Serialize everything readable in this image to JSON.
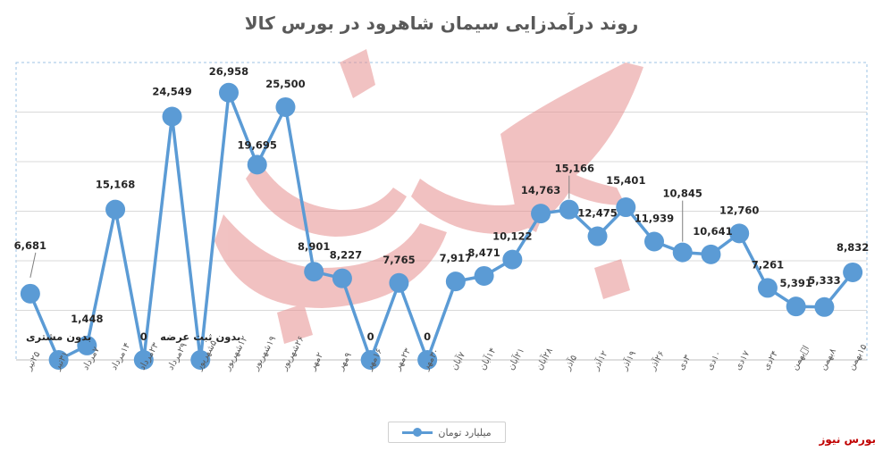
{
  "chart_data": {
    "type": "line",
    "title": "روند درآمدزایی سیمان شاهرود در بورس کالا",
    "x": [
      "۲۵تیر",
      "۳۱تیر",
      "۷مرداد",
      "۱۴مرداد",
      "۲۳مرداد",
      "۲۹مرداد",
      "۵شهریور",
      "۱۲شهریور",
      "۱۹شهریور",
      "۲۶شهریور",
      "۲مهر",
      "۹مهر",
      "۱۶مهر",
      "۲۳مهر",
      "۳۰مهر",
      "۷آبان",
      "۱۴آبان",
      "۲۱آبان",
      "۲۸آبان",
      "۵آذر",
      "۱۲آذر",
      "۱۹آذر",
      "۲۶آذر",
      "۳دی",
      "۱۰دی",
      "۱۷دی",
      "۲۴دی",
      "اۡبهمن",
      "۸بهمن",
      "۱۵بهمن"
    ],
    "series": [
      {
        "name": "میلیارد تومان",
        "values": [
          6681,
          0,
          1448,
          15168,
          0,
          24549,
          0,
          26958,
          19695,
          25500,
          8901,
          8227,
          0,
          7765,
          0,
          7917,
          8471,
          10122,
          14763,
          15166,
          12475,
          15401,
          11939,
          10845,
          10641,
          12760,
          7261,
          5391,
          5333,
          8832
        ],
        "labels": [
          "6,681",
          "",
          "1,448",
          "15,168",
          "0",
          "24,549",
          "",
          "26,958",
          "19,695",
          "25,500",
          "8,901",
          "8,227",
          "0",
          "7,765",
          "0",
          "7,917",
          "8,471",
          "10,122",
          "14,763",
          "15,166",
          "12,475",
          "15,401",
          "11,939",
          "10,845",
          "10,641",
          "12,760",
          "7,261",
          "5,391",
          "5,333",
          "8,832"
        ]
      }
    ],
    "annotations": [
      {
        "index": 1,
        "text": "بدون مشتری"
      },
      {
        "index": 6,
        "text": "بدون ثبت عرضه"
      }
    ],
    "ylim": [
      0,
      30000
    ],
    "grid": true,
    "legend": "bottom"
  },
  "legend_label": "میلیارد تومان",
  "brand": "بورس نیوز",
  "colors": {
    "series": "#5b9bd5",
    "grid": "#d9d9d9",
    "watermark": "#e8a0a0"
  }
}
